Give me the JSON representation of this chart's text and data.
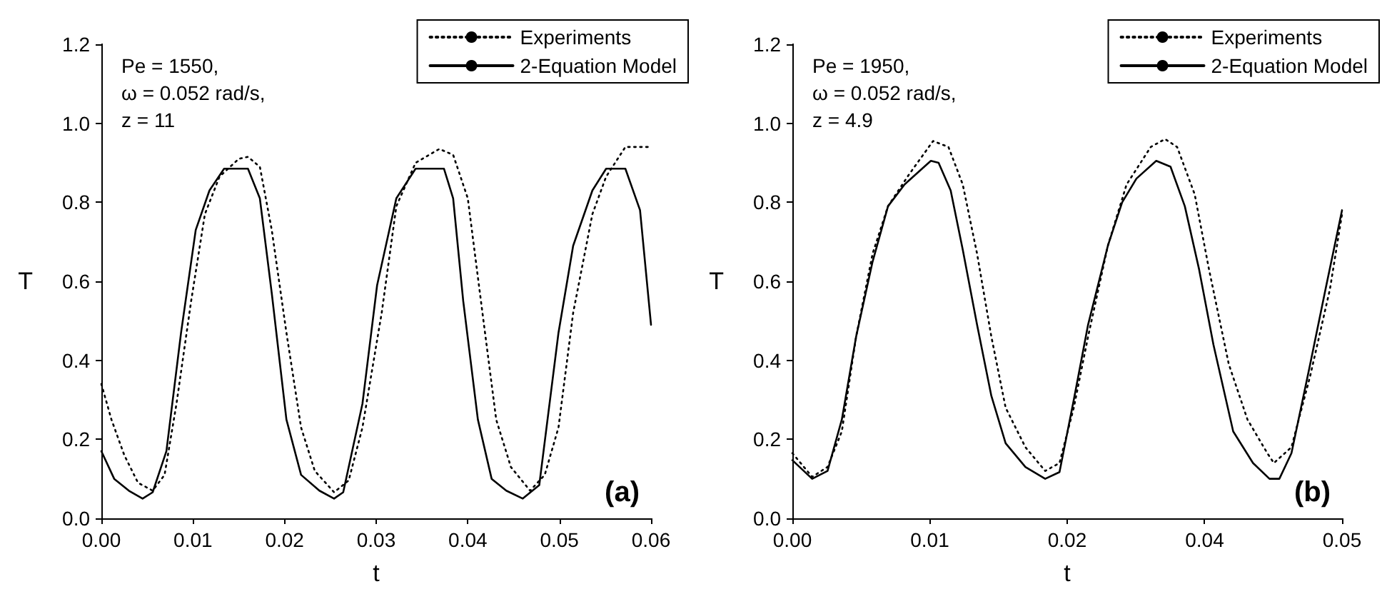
{
  "chart_data": [
    {
      "type": "line",
      "xlabel": "t",
      "ylabel": "T",
      "xlim": [
        0,
        0.06
      ],
      "ylim": [
        0,
        1.2
      ],
      "xticks": [
        {
          "value": 0,
          "label": "0.00"
        },
        {
          "value": 0.01,
          "label": "0.01"
        },
        {
          "value": 0.02,
          "label": "0.02"
        },
        {
          "value": 0.03,
          "label": "0.03"
        },
        {
          "value": 0.04,
          "label": "0.04"
        },
        {
          "value": 0.05,
          "label": "0.05"
        },
        {
          "value": 0.06,
          "label": "0.06"
        }
      ],
      "yticks": [
        {
          "value": 0,
          "label": "0.0"
        },
        {
          "value": 0.2,
          "label": "0.2"
        },
        {
          "value": 0.4,
          "label": "0.4"
        },
        {
          "value": 0.6,
          "label": "0.6"
        },
        {
          "value": 0.8,
          "label": "0.8"
        },
        {
          "value": 1.0,
          "label": "1.0"
        },
        {
          "value": 1.2,
          "label": "1.2"
        }
      ],
      "grid": false,
      "legend": "top right",
      "marker": "none",
      "annotations": [
        "Pe = 1550,",
        "ω = 0.052 rad/s,",
        "z = 11",
        "(a)"
      ],
      "series": [
        {
          "name": "Experiments",
          "color": "#000000",
          "line_style": "dotted",
          "x": [
            0,
            0.0011,
            0.0025,
            0.004,
            0.0056,
            0.0069,
            0.0082,
            0.0098,
            0.0113,
            0.0129,
            0.015,
            0.016,
            0.0173,
            0.0186,
            0.0202,
            0.0218,
            0.0233,
            0.0254,
            0.027,
            0.0285,
            0.0306,
            0.0322,
            0.0343,
            0.0369,
            0.0384,
            0.04,
            0.0416,
            0.0431,
            0.0447,
            0.0468,
            0.0484,
            0.0499,
            0.0515,
            0.0536,
            0.0551,
            0.0572,
            0.06
          ],
          "values": [
            0.34,
            0.25,
            0.16,
            0.09,
            0.07,
            0.11,
            0.29,
            0.55,
            0.77,
            0.865,
            0.91,
            0.915,
            0.89,
            0.73,
            0.47,
            0.23,
            0.12,
            0.066,
            0.096,
            0.23,
            0.52,
            0.79,
            0.9,
            0.935,
            0.92,
            0.81,
            0.52,
            0.25,
            0.13,
            0.07,
            0.11,
            0.23,
            0.52,
            0.77,
            0.865,
            0.94,
            0.94
          ]
        },
        {
          "name": "2-Equation Model",
          "color": "#000000",
          "line_style": "solid",
          "x": [
            0,
            0.0014,
            0.003,
            0.0045,
            0.0056,
            0.0071,
            0.0087,
            0.0103,
            0.0118,
            0.0134,
            0.016,
            0.0173,
            0.0186,
            0.0202,
            0.0218,
            0.0238,
            0.0254,
            0.0264,
            0.0285,
            0.0301,
            0.0322,
            0.0343,
            0.0374,
            0.0384,
            0.0395,
            0.0411,
            0.0426,
            0.0442,
            0.046,
            0.0478,
            0.0499,
            0.0515,
            0.0536,
            0.0551,
            0.0572,
            0.0588,
            0.06
          ],
          "values": [
            0.17,
            0.1,
            0.07,
            0.05,
            0.066,
            0.17,
            0.47,
            0.73,
            0.83,
            0.885,
            0.885,
            0.81,
            0.57,
            0.25,
            0.11,
            0.07,
            0.05,
            0.066,
            0.29,
            0.59,
            0.81,
            0.885,
            0.885,
            0.81,
            0.55,
            0.25,
            0.1,
            0.07,
            0.05,
            0.084,
            0.47,
            0.69,
            0.83,
            0.885,
            0.885,
            0.78,
            0.49
          ]
        }
      ]
    },
    {
      "type": "line",
      "xlabel": "t",
      "ylabel": "T",
      "xlim": [
        0,
        0.05
      ],
      "ylim": [
        0,
        1.2
      ],
      "xticks": [
        {
          "value": 0,
          "label": "0.00"
        },
        {
          "value": 0.0125,
          "label": "0.01"
        },
        {
          "value": 0.025,
          "label": "0.02"
        },
        {
          "value": 0.0375,
          "label": "0.04"
        },
        {
          "value": 0.05,
          "label": "0.05"
        }
      ],
      "yticks": [
        {
          "value": 0,
          "label": "0.0"
        },
        {
          "value": 0.2,
          "label": "0.2"
        },
        {
          "value": 0.4,
          "label": "0.4"
        },
        {
          "value": 0.6,
          "label": "0.6"
        },
        {
          "value": 0.8,
          "label": "0.8"
        },
        {
          "value": 1.0,
          "label": "1.0"
        },
        {
          "value": 1.2,
          "label": "1.2"
        }
      ],
      "grid": false,
      "legend": "top right",
      "marker": "none",
      "annotations": [
        "Pe = 1950,",
        "ω = 0.052 rad/s,",
        "z = 4.9",
        "(b)"
      ],
      "series": [
        {
          "name": "Experiments",
          "color": "#000000",
          "line_style": "dotted",
          "x": [
            0,
            0.0018,
            0.0032,
            0.0045,
            0.0058,
            0.0073,
            0.0087,
            0.0106,
            0.0128,
            0.0142,
            0.0155,
            0.0168,
            0.0181,
            0.0194,
            0.0212,
            0.023,
            0.0243,
            0.0256,
            0.0269,
            0.0287,
            0.0304,
            0.0326,
            0.0339,
            0.035,
            0.0366,
            0.0379,
            0.0397,
            0.0414,
            0.0432,
            0.0438,
            0.0454,
            0.0471,
            0.0489,
            0.05
          ],
          "values": [
            0.165,
            0.105,
            0.13,
            0.22,
            0.46,
            0.67,
            0.79,
            0.87,
            0.955,
            0.94,
            0.845,
            0.67,
            0.46,
            0.28,
            0.18,
            0.12,
            0.14,
            0.28,
            0.46,
            0.69,
            0.845,
            0.94,
            0.96,
            0.94,
            0.82,
            0.63,
            0.39,
            0.25,
            0.165,
            0.14,
            0.18,
            0.36,
            0.58,
            0.77
          ]
        },
        {
          "name": "2-Equation Model",
          "color": "#000000",
          "line_style": "solid",
          "x": [
            0,
            0.0018,
            0.0032,
            0.0045,
            0.0058,
            0.0073,
            0.0087,
            0.0102,
            0.012,
            0.0126,
            0.0133,
            0.0144,
            0.0155,
            0.0168,
            0.0181,
            0.0194,
            0.0212,
            0.023,
            0.0243,
            0.0256,
            0.0269,
            0.0287,
            0.03,
            0.0313,
            0.0331,
            0.0344,
            0.0357,
            0.037,
            0.0383,
            0.0401,
            0.0419,
            0.0434,
            0.0443,
            0.0454,
            0.0471,
            0.0485,
            0.05
          ],
          "values": [
            0.147,
            0.1,
            0.12,
            0.25,
            0.46,
            0.65,
            0.79,
            0.845,
            0.89,
            0.905,
            0.9,
            0.83,
            0.68,
            0.49,
            0.31,
            0.19,
            0.13,
            0.1,
            0.117,
            0.3,
            0.49,
            0.69,
            0.8,
            0.86,
            0.905,
            0.89,
            0.79,
            0.63,
            0.44,
            0.22,
            0.14,
            0.1,
            0.1,
            0.165,
            0.39,
            0.58,
            0.78
          ]
        }
      ]
    }
  ]
}
